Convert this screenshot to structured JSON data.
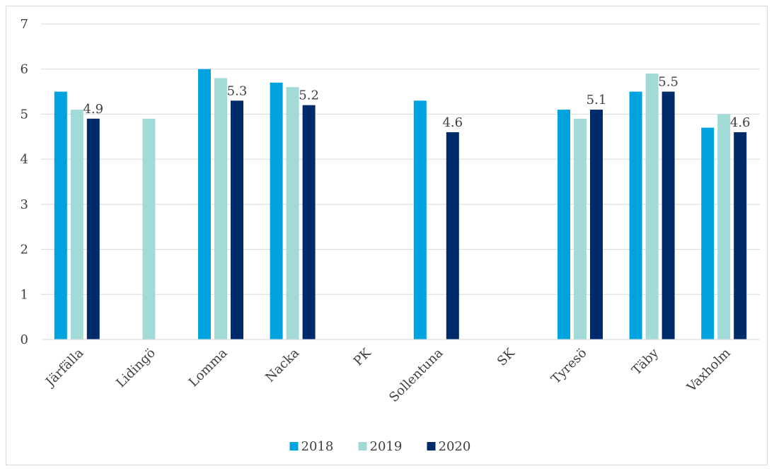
{
  "chart_data": {
    "type": "bar",
    "categories": [
      "Järfälla",
      "Lidingö",
      "Lomma",
      "Nacka",
      "PK",
      "Sollentuna",
      "SK",
      "Tyresö",
      "Täby",
      "Vaxholm"
    ],
    "series": [
      {
        "name": "2018",
        "color": "#00a3e0",
        "values": [
          5.5,
          null,
          6.0,
          5.7,
          null,
          5.3,
          null,
          5.1,
          5.5,
          4.7
        ]
      },
      {
        "name": "2019",
        "color": "#a1dad7",
        "values": [
          5.1,
          4.9,
          5.8,
          5.6,
          null,
          null,
          null,
          4.9,
          5.9,
          5.0
        ]
      },
      {
        "name": "2020",
        "color": "#002b6b",
        "values": [
          4.9,
          null,
          5.3,
          5.2,
          null,
          4.6,
          null,
          5.1,
          5.5,
          4.6
        ]
      }
    ],
    "data_labels": {
      "series": "2020",
      "labels": [
        "4.9",
        "",
        "5.3",
        "5.2",
        "",
        "4.6",
        "",
        "5.1",
        "5.5",
        "4.6"
      ]
    },
    "ylim": [
      0,
      7
    ],
    "yticks": [
      "0",
      "1",
      "2",
      "3",
      "4",
      "5",
      "6",
      "7"
    ],
    "grid": true,
    "legend": "bottom"
  }
}
